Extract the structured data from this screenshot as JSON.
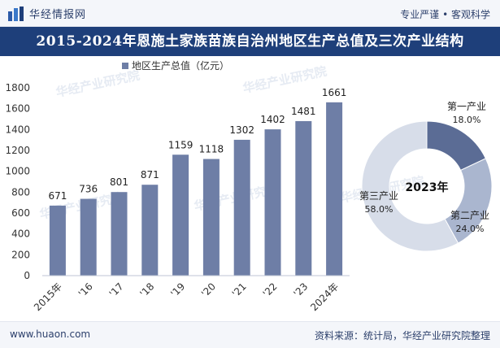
{
  "header": {
    "brand": "华经情报网",
    "slogan": "专业严谨 • 客观科学"
  },
  "title": "2015-2024年恩施土家族苗族自治州地区生产总值及三次产业结构",
  "footer": {
    "url": "www.huaon.com",
    "source": "资料来源：统计局，华经产业研究院整理"
  },
  "watermark": "华经产业研究院",
  "colors": {
    "bar": "#6e7ea6",
    "title_bg": "#1e3f7a",
    "donut_primary": "#5b6c95",
    "donut_secondary": "#aab6cf",
    "donut_tertiary": "#d7dde9"
  },
  "chart_data": [
    {
      "type": "bar",
      "legend": "地区生产总值（亿元）",
      "legend_position": "top",
      "categories": [
        "2015年",
        "'16",
        "'17",
        "'18",
        "'19",
        "'20",
        "'21",
        "'22",
        "'23",
        "2024年"
      ],
      "values": [
        671,
        736,
        801,
        871,
        1159,
        1118,
        1302,
        1402,
        1481,
        1661
      ],
      "value_labels": [
        "671",
        "736",
        "801",
        "871",
        "1159",
        "1118",
        "1302",
        "1402",
        "1481",
        "1661"
      ],
      "yticks": [
        "0",
        "200",
        "400",
        "600",
        "800",
        "1000",
        "1200",
        "1400",
        "1600",
        "1800"
      ],
      "ylim": [
        0,
        1800
      ],
      "grid": false
    },
    {
      "type": "pie",
      "center_label": "2023年",
      "slices": [
        {
          "name": "第一产业",
          "value": 18.0,
          "label": "18.0%"
        },
        {
          "name": "第二产业",
          "value": 24.0,
          "label": "24.0%"
        },
        {
          "name": "第三产业",
          "value": 58.0,
          "label": "58.0%"
        }
      ]
    }
  ]
}
